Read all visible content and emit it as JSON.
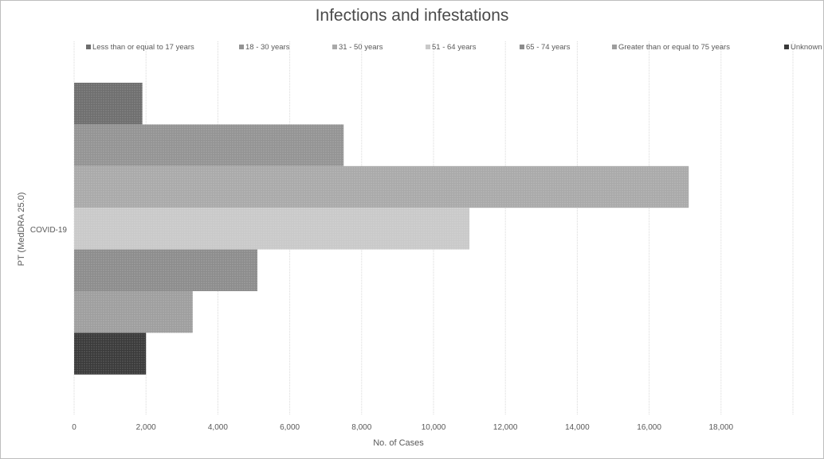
{
  "chart_data": {
    "type": "bar",
    "orientation": "horizontal",
    "title": "Infections and infestations",
    "xlabel": "No. of Cases",
    "ylabel": "PT (MedDRA 25.0)",
    "categories": [
      "COVID-19"
    ],
    "xlim": [
      0,
      20000
    ],
    "x_ticks": [
      "0",
      "2,000",
      "4,000",
      "6,000",
      "8,000",
      "10,000",
      "12,000",
      "14,000",
      "16,000",
      "18,000"
    ],
    "grid": true,
    "legend_position": "top",
    "series": [
      {
        "name": "Less than or equal to 17 years",
        "values": [
          1900
        ],
        "color": "#6e6e6e"
      },
      {
        "name": "18 - 30 years",
        "values": [
          7500
        ],
        "color": "#939393"
      },
      {
        "name": "31 - 50 years",
        "values": [
          17100
        ],
        "color": "#a9a9a9"
      },
      {
        "name": "51 - 64 years",
        "values": [
          11000
        ],
        "color": "#c9c9c9"
      },
      {
        "name": "65 - 74 years",
        "values": [
          5100
        ],
        "color": "#8c8c8c"
      },
      {
        "name": "Greater than or equal to 75 years",
        "values": [
          3300
        ],
        "color": "#9e9e9e"
      },
      {
        "name": "Unknown",
        "values": [
          2000
        ],
        "color": "#3a3a3a"
      }
    ]
  }
}
